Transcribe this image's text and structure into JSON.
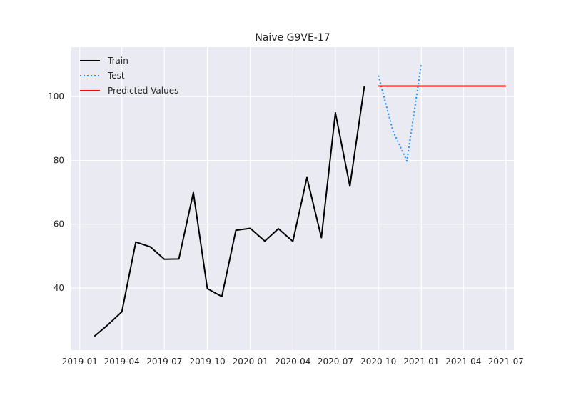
{
  "chart_data": {
    "type": "line",
    "title": "Naive G9VE-17",
    "xlabel": "",
    "ylabel": "",
    "x_axis": "date",
    "xlim": [
      "2018-12-14",
      "2021-07-18"
    ],
    "ylim": [
      20.5,
      115.5
    ],
    "x_ticks": [
      "2019-01-01",
      "2019-04-01",
      "2019-07-01",
      "2019-10-01",
      "2020-01-01",
      "2020-04-01",
      "2020-07-01",
      "2020-10-01",
      "2021-01-01",
      "2021-04-01",
      "2021-07-01"
    ],
    "x_tick_labels": [
      "2019-01",
      "2019-04",
      "2019-07",
      "2019-10",
      "2020-01",
      "2020-04",
      "2020-07",
      "2020-10",
      "2021-01",
      "2021-04",
      "2021-07"
    ],
    "y_ticks": [
      40,
      60,
      80,
      100
    ],
    "y_tick_labels": [
      "40",
      "60",
      "80",
      "100"
    ],
    "grid": true,
    "legend_position": "top-left",
    "background": "#eaeaf2",
    "series": [
      {
        "name": "Train",
        "color": "#000000",
        "style": "solid",
        "x": [
          "2019-02-01",
          "2019-03-01",
          "2019-04-01",
          "2019-05-01",
          "2019-06-01",
          "2019-07-01",
          "2019-08-01",
          "2019-09-01",
          "2019-10-01",
          "2019-11-01",
          "2019-12-01",
          "2020-01-01",
          "2020-02-01",
          "2020-03-01",
          "2020-04-01",
          "2020-05-01",
          "2020-06-01",
          "2020-07-01",
          "2020-08-01",
          "2020-09-01"
        ],
        "y": [
          24.8,
          28.3,
          32.5,
          54.4,
          52.9,
          49.0,
          49.1,
          69.9,
          39.8,
          37.3,
          58.1,
          58.7,
          54.7,
          58.6,
          54.6,
          74.6,
          55.8,
          94.9,
          71.9,
          103.3
        ]
      },
      {
        "name": "Test",
        "color": "#1e90ff",
        "style": "dotted",
        "x": [
          "2020-10-01",
          "2020-11-01",
          "2020-12-01",
          "2021-01-01"
        ],
        "y": [
          106.6,
          89.3,
          79.8,
          110.4
        ]
      },
      {
        "name": "Predicted Values",
        "color": "#ff0000",
        "style": "solid",
        "x": [
          "2020-10-01",
          "2021-07-01"
        ],
        "y": [
          103.3,
          103.3
        ]
      }
    ]
  }
}
